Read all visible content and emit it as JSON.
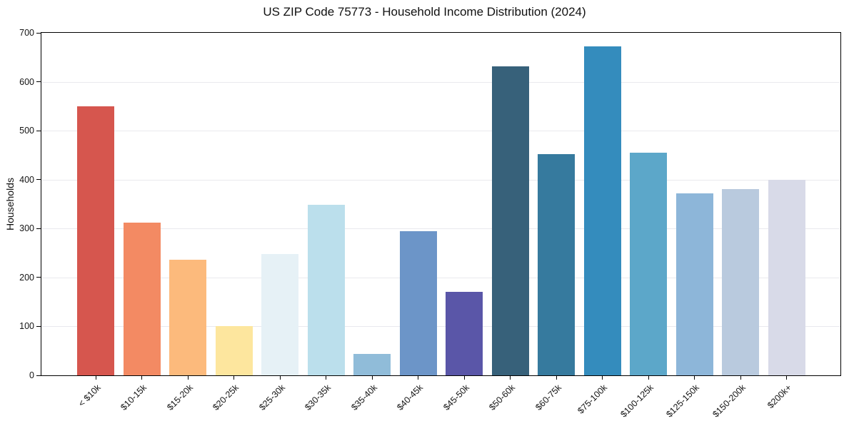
{
  "chart_data": {
    "type": "bar",
    "title": "US ZIP Code 75773 - Household Income Distribution (2024)",
    "xlabel": "",
    "ylabel": "Households",
    "categories": [
      "< $10k",
      "$10-15k",
      "$15-20k",
      "$20-25k",
      "$25-30k",
      "$30-35k",
      "$35-40k",
      "$40-45k",
      "$45-50k",
      "$50-60k",
      "$60-75k",
      "$75-100k",
      "$100-125k",
      "$125-150k",
      "$150-200k",
      "$200k+"
    ],
    "values": [
      550,
      312,
      236,
      100,
      248,
      348,
      44,
      295,
      170,
      632,
      452,
      672,
      455,
      372,
      380,
      399
    ],
    "bar_colors": [
      "#d6564e",
      "#f38a63",
      "#fcba7c",
      "#fde69e",
      "#e6f1f6",
      "#bbdfec",
      "#90bcd9",
      "#6c95c8",
      "#5a56a8",
      "#37617a",
      "#367a9e",
      "#348cbd",
      "#5ca7c9",
      "#8db6d9",
      "#b9cade",
      "#d8dae8"
    ],
    "ylim": [
      0,
      700
    ],
    "yticks": [
      0,
      100,
      200,
      300,
      400,
      500,
      600,
      700
    ],
    "grid": "horizontal",
    "legend": "none",
    "colors": {
      "axis": "#000000",
      "grid": "#e9e9ee",
      "text": "#141414",
      "background": "#ffffff"
    }
  }
}
